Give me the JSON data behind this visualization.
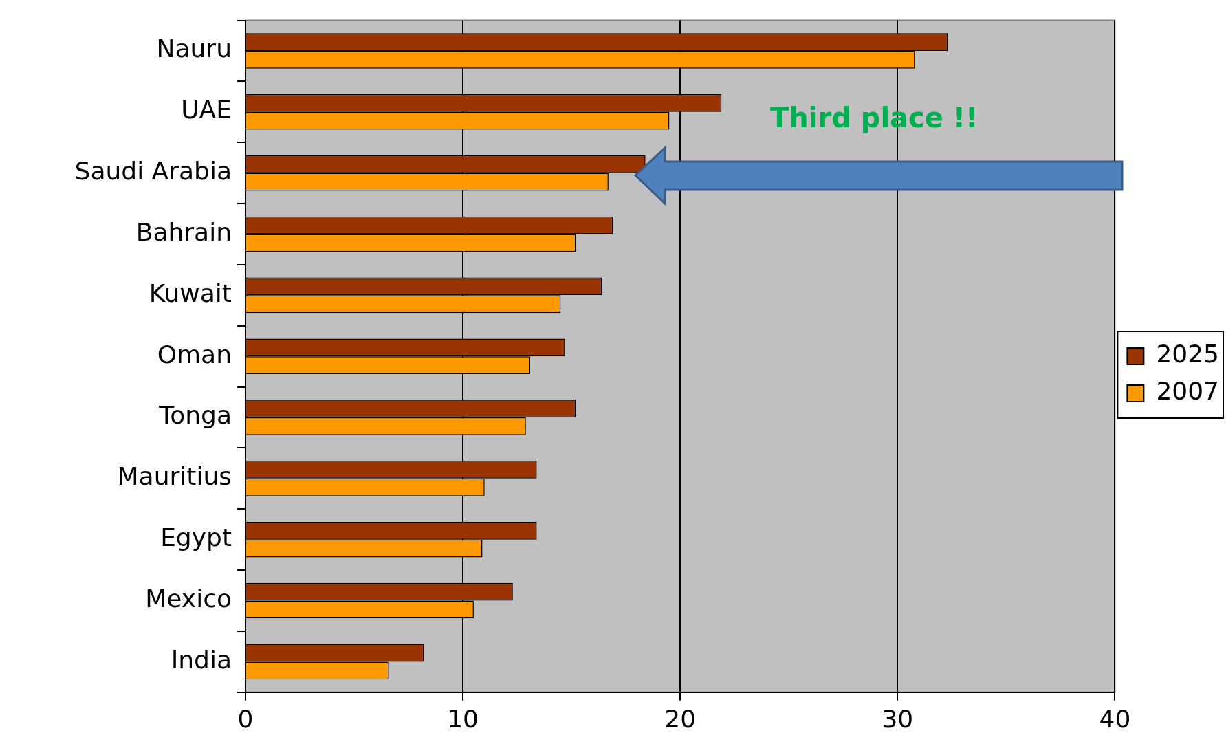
{
  "chart_data": {
    "type": "bar",
    "orientation": "horizontal",
    "categories": [
      "Nauru",
      "UAE",
      "Saudi Arabia",
      "Bahrain",
      "Kuwait",
      "Oman",
      "Tonga",
      "Mauritius",
      "Egypt",
      "Mexico",
      "India"
    ],
    "series": [
      {
        "name": "2025",
        "color": "#993300",
        "values": [
          32.3,
          21.9,
          18.4,
          16.9,
          16.4,
          14.7,
          15.2,
          13.4,
          13.4,
          12.3,
          8.2
        ]
      },
      {
        "name": "2007",
        "color": "#ff9900",
        "values": [
          30.8,
          19.5,
          16.7,
          15.2,
          14.5,
          13.1,
          12.9,
          11.0,
          10.9,
          10.5,
          6.6
        ]
      }
    ],
    "xlim": [
      0,
      40
    ],
    "xticks": [
      0,
      10,
      20,
      30,
      40
    ],
    "grid": "x",
    "legend": "right",
    "annotations": [
      "Third place !!"
    ]
  }
}
